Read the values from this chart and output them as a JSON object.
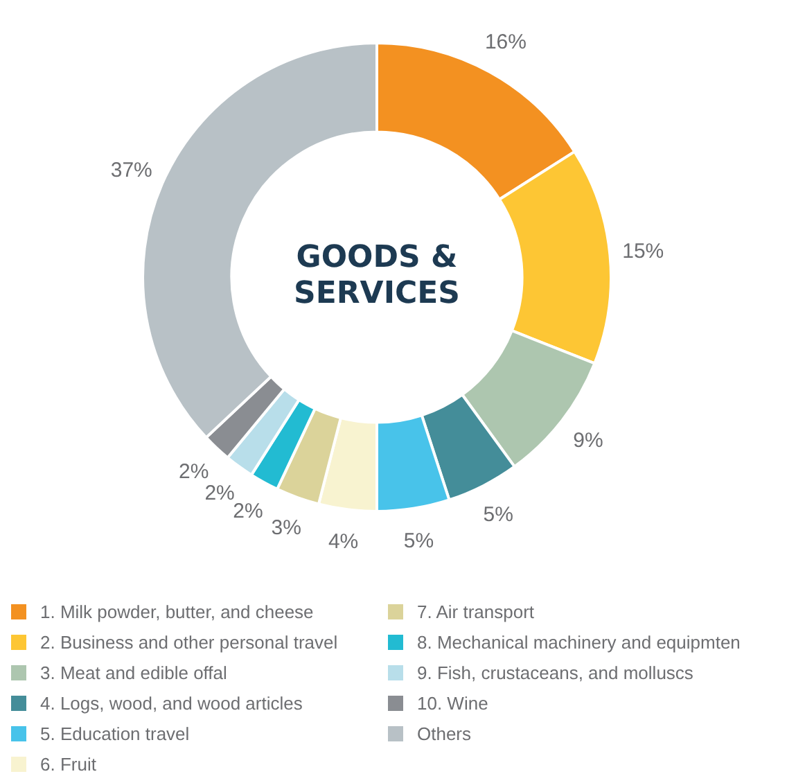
{
  "chart_data": {
    "type": "donut",
    "title": "GOODS & SERVICES",
    "categories": [
      "1. Milk powder, butter, and cheese",
      "2. Business and other personal travel",
      "3. Meat  and edible offal",
      "4. Logs, wood, and wood articles",
      "5. Education travel",
      "6. Fruit",
      "7. Air transport",
      "8. Mechanical machinery and equipmten",
      "9. Fish,  crustaceans, and molluscs",
      "10. Wine",
      "Others"
    ],
    "values": [
      16,
      15,
      9,
      5,
      5,
      4,
      3,
      2,
      2,
      2,
      37
    ],
    "value_labels": [
      "16%",
      "15%",
      "9%",
      "5%",
      "5%",
      "4%",
      "3%",
      "2%",
      "2%",
      "2%",
      "37%"
    ],
    "colors": [
      "#f39121",
      "#fdc634",
      "#adc6af",
      "#448d99",
      "#48c3ea",
      "#f8f3d0",
      "#dbd39a",
      "#22bbd2",
      "#b8deea",
      "#8a8d92",
      "#b8c1c6"
    ],
    "legend": "bottom"
  }
}
